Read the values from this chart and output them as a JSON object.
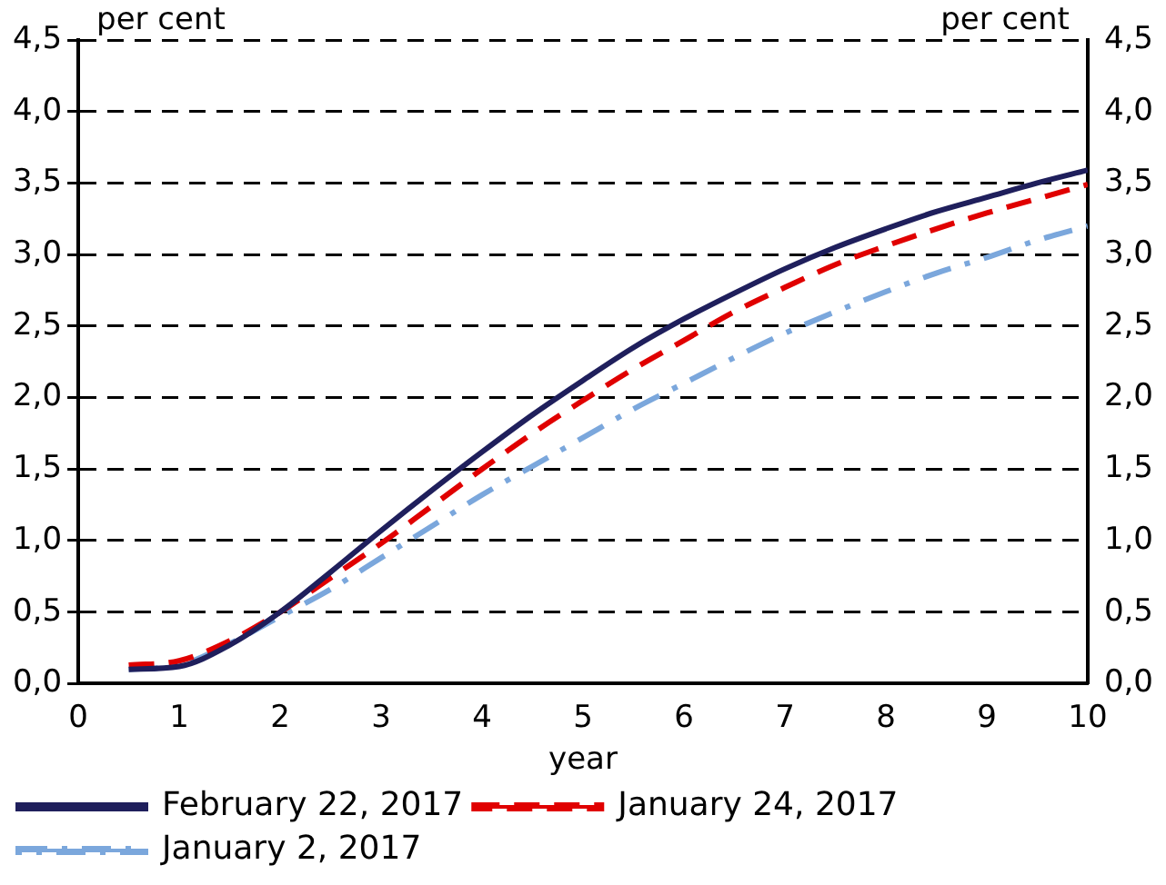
{
  "chart_data": {
    "type": "line",
    "xlabel": "year",
    "ylabel": "per cent",
    "y2label": "per cent",
    "x": [
      0.5,
      1,
      1.5,
      2,
      2.5,
      3,
      3.5,
      4,
      4.5,
      5,
      5.5,
      6,
      6.5,
      7,
      7.5,
      8,
      8.5,
      9,
      9.5,
      10
    ],
    "series": [
      {
        "name": "February 22, 2017",
        "color": "#1f1f5c",
        "line_style": "solid",
        "values": [
          0.1,
          0.12,
          0.27,
          0.5,
          0.78,
          1.07,
          1.35,
          1.62,
          1.88,
          2.12,
          2.35,
          2.55,
          2.73,
          2.9,
          3.05,
          3.18,
          3.3,
          3.4,
          3.5,
          3.59
        ]
      },
      {
        "name": "January 24, 2017",
        "color": "#e00000",
        "line_style": "dashed",
        "values": [
          0.13,
          0.16,
          0.3,
          0.5,
          0.74,
          0.98,
          1.24,
          1.5,
          1.75,
          1.98,
          2.2,
          2.4,
          2.6,
          2.77,
          2.93,
          3.06,
          3.18,
          3.29,
          3.39,
          3.49
        ]
      },
      {
        "name": "January 2, 2017",
        "color": "#7ba7dc",
        "line_style": "dashdot",
        "values": [
          0.1,
          0.13,
          0.28,
          0.47,
          0.66,
          0.88,
          1.1,
          1.32,
          1.52,
          1.72,
          1.92,
          2.1,
          2.28,
          2.45,
          2.6,
          2.74,
          2.87,
          2.98,
          3.1,
          3.2
        ]
      }
    ],
    "xlim": [
      0,
      10
    ],
    "xticks": [
      0,
      1,
      2,
      3,
      4,
      5,
      6,
      7,
      8,
      9,
      10
    ],
    "ylim": [
      0,
      4.5
    ],
    "yticks": [
      {
        "value": 0,
        "label": "0,0"
      },
      {
        "value": 0.5,
        "label": "0,5"
      },
      {
        "value": 1,
        "label": "1,0"
      },
      {
        "value": 1.5,
        "label": "1,5"
      },
      {
        "value": 2,
        "label": "2,0"
      },
      {
        "value": 2.5,
        "label": "2,5"
      },
      {
        "value": 3,
        "label": "3,0"
      },
      {
        "value": 3.5,
        "label": "3,5"
      },
      {
        "value": 4,
        "label": "4,0"
      },
      {
        "value": 4.5,
        "label": "4,5"
      }
    ],
    "y2lim": [
      0,
      4.5
    ],
    "y2ticks": [
      {
        "value": 0,
        "label": "0,0"
      },
      {
        "value": 0.5,
        "label": "0,5"
      },
      {
        "value": 1,
        "label": "1,0"
      },
      {
        "value": 1.5,
        "label": "1,5"
      },
      {
        "value": 2,
        "label": "2,0"
      },
      {
        "value": 2.5,
        "label": "2,5"
      },
      {
        "value": 3,
        "label": "3,0"
      },
      {
        "value": 3.5,
        "label": "3,5"
      },
      {
        "value": 4,
        "label": "4,0"
      },
      {
        "value": 4.5,
        "label": "4,5"
      }
    ],
    "grid": "y",
    "legend": "bottom",
    "marker": "none"
  }
}
